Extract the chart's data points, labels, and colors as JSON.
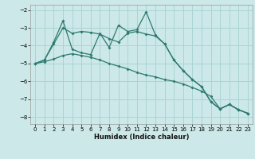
{
  "xlabel": "Humidex (Indice chaleur)",
  "bg_color": "#cce8e8",
  "grid_color": "#aad4d4",
  "line_color": "#2d7a6e",
  "xlim": [
    -0.5,
    23.5
  ],
  "ylim": [
    -8.4,
    -1.7
  ],
  "yticks": [
    -8,
    -7,
    -6,
    -5,
    -4,
    -3,
    -2
  ],
  "xticks": [
    0,
    1,
    2,
    3,
    4,
    5,
    6,
    7,
    8,
    9,
    10,
    11,
    12,
    13,
    14,
    15,
    16,
    17,
    18,
    19,
    20,
    21,
    22,
    23
  ],
  "line1_x": [
    0,
    1,
    2,
    3,
    4,
    5,
    6,
    7,
    8,
    9,
    10,
    11,
    12,
    13,
    14,
    15,
    16,
    17,
    18,
    19,
    20,
    21,
    22,
    23
  ],
  "line1_y": [
    -5.0,
    -4.8,
    -3.8,
    -2.6,
    -4.2,
    -4.4,
    -4.5,
    -3.3,
    -4.1,
    -2.85,
    -3.2,
    -3.1,
    -2.1,
    -3.4,
    -3.9,
    -4.8,
    -5.4,
    -5.9,
    -6.3,
    -7.15,
    -7.55,
    -7.3,
    -7.6,
    -7.8
  ],
  "line2_x": [
    0,
    1,
    2,
    3,
    4,
    5,
    6,
    7,
    8,
    9,
    10,
    11,
    12,
    13,
    14,
    15,
    16,
    17,
    18,
    19,
    20,
    21,
    22,
    23
  ],
  "line2_y": [
    -5.0,
    -4.8,
    -3.9,
    -3.0,
    -3.3,
    -3.2,
    -3.25,
    -3.35,
    -3.6,
    -3.8,
    -3.3,
    -3.2,
    -3.35,
    -3.45,
    -3.9,
    -4.8,
    -5.4,
    -5.9,
    -6.3,
    -7.15,
    -7.55,
    -7.3,
    -7.6,
    -7.8
  ],
  "line3_x": [
    0,
    1,
    2,
    3,
    4,
    5,
    6,
    7,
    8,
    9,
    10,
    11,
    12,
    13,
    14,
    15,
    16,
    17,
    18,
    19,
    20,
    21,
    22,
    23
  ],
  "line3_y": [
    -5.0,
    -4.9,
    -4.75,
    -4.55,
    -4.45,
    -4.55,
    -4.65,
    -4.8,
    -5.0,
    -5.15,
    -5.3,
    -5.5,
    -5.65,
    -5.75,
    -5.9,
    -6.0,
    -6.15,
    -6.35,
    -6.55,
    -6.85,
    -7.55,
    -7.3,
    -7.6,
    -7.8
  ]
}
